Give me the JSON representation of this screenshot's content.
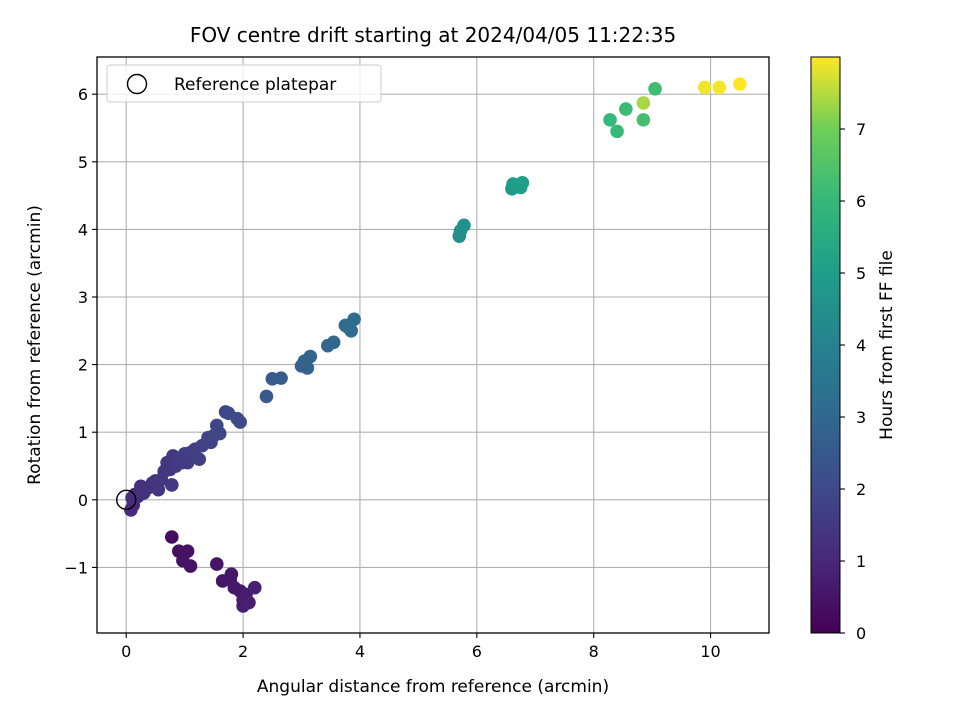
{
  "chart_data": {
    "type": "scatter",
    "title": "FOV centre drift starting at 2024/04/05 11:22:35",
    "xlabel": "Angular distance from reference (arcmin)",
    "ylabel": "Rotation from reference (arcmin)",
    "xlim": [
      -0.5,
      11.0
    ],
    "ylim": [
      -1.97,
      6.55
    ],
    "xticks": [
      0,
      2,
      4,
      6,
      8,
      10
    ],
    "yticks": [
      -1,
      0,
      1,
      2,
      3,
      4,
      5,
      6
    ],
    "ytick_labels": [
      "−1",
      "0",
      "1",
      "2",
      "3",
      "4",
      "5",
      "6"
    ],
    "grid": true,
    "colormap": "viridis",
    "colorbar": {
      "label": "Hours from first FF file",
      "range": [
        0,
        8.0
      ],
      "ticks": [
        0,
        1,
        2,
        3,
        4,
        5,
        6,
        7
      ]
    },
    "legend": {
      "placement": "top-left",
      "entries": [
        {
          "label": "Reference platepar",
          "marker": "open-circle"
        }
      ]
    },
    "reference_point": {
      "x": 0,
      "y": 0
    },
    "series": [
      {
        "color_by": "hours",
        "points": [
          [
            0.78,
            -0.55,
            0.3
          ],
          [
            0.9,
            -0.76,
            0.35
          ],
          [
            0.98,
            -0.8,
            0.4
          ],
          [
            1.05,
            -0.76,
            0.4
          ],
          [
            0.97,
            -0.9,
            0.45
          ],
          [
            1.1,
            -0.98,
            0.45
          ],
          [
            1.55,
            -0.95,
            0.5
          ],
          [
            1.65,
            -1.2,
            0.5
          ],
          [
            1.78,
            -1.18,
            0.55
          ],
          [
            1.8,
            -1.1,
            0.55
          ],
          [
            1.85,
            -1.3,
            0.6
          ],
          [
            1.95,
            -1.35,
            0.6
          ],
          [
            2.0,
            -1.48,
            0.65
          ],
          [
            2.05,
            -1.4,
            0.7
          ],
          [
            2.0,
            -1.57,
            0.75
          ],
          [
            2.1,
            -1.52,
            0.8
          ],
          [
            2.2,
            -1.3,
            0.85
          ],
          [
            0.08,
            -0.15,
            1.1
          ],
          [
            0.12,
            -0.08,
            1.1
          ],
          [
            0.1,
            0.03,
            1.15
          ],
          [
            0.15,
            0.08,
            1.15
          ],
          [
            0.2,
            0.05,
            1.2
          ],
          [
            0.25,
            0.2,
            1.2
          ],
          [
            0.3,
            0.1,
            1.25
          ],
          [
            0.38,
            0.18,
            1.3
          ],
          [
            0.45,
            0.25,
            1.3
          ],
          [
            0.5,
            0.28,
            1.35
          ],
          [
            0.55,
            0.15,
            1.35
          ],
          [
            0.6,
            0.3,
            1.4
          ],
          [
            0.65,
            0.42,
            1.4
          ],
          [
            0.7,
            0.55,
            1.45
          ],
          [
            0.75,
            0.45,
            1.45
          ],
          [
            0.78,
            0.22,
            1.5
          ],
          [
            0.8,
            0.65,
            1.5
          ],
          [
            0.85,
            0.5,
            1.5
          ],
          [
            0.9,
            0.6,
            1.55
          ],
          [
            0.95,
            0.55,
            1.55
          ],
          [
            1.0,
            0.68,
            1.6
          ],
          [
            1.05,
            0.55,
            1.6
          ],
          [
            1.1,
            0.7,
            1.65
          ],
          [
            1.18,
            0.75,
            1.65
          ],
          [
            1.25,
            0.6,
            1.7
          ],
          [
            1.3,
            0.8,
            1.75
          ],
          [
            1.4,
            0.92,
            1.8
          ],
          [
            1.45,
            0.85,
            1.8
          ],
          [
            1.5,
            0.95,
            1.85
          ],
          [
            1.55,
            1.1,
            1.9
          ],
          [
            1.6,
            0.98,
            1.9
          ],
          [
            1.7,
            1.3,
            1.95
          ],
          [
            1.75,
            1.28,
            2.0
          ],
          [
            1.9,
            1.2,
            2.0
          ],
          [
            1.95,
            1.15,
            2.05
          ],
          [
            2.4,
            1.53,
            2.5
          ],
          [
            2.5,
            1.79,
            2.55
          ],
          [
            2.65,
            1.8,
            2.6
          ],
          [
            3.0,
            1.98,
            2.75
          ],
          [
            3.05,
            2.05,
            2.8
          ],
          [
            3.1,
            1.95,
            2.8
          ],
          [
            3.15,
            2.12,
            2.85
          ],
          [
            3.45,
            2.28,
            2.95
          ],
          [
            3.55,
            2.33,
            3.0
          ],
          [
            3.75,
            2.58,
            3.1
          ],
          [
            3.8,
            2.55,
            3.15
          ],
          [
            3.85,
            2.5,
            3.15
          ],
          [
            3.9,
            2.67,
            3.2
          ],
          [
            5.7,
            3.9,
            4.45
          ],
          [
            5.72,
            3.98,
            4.5
          ],
          [
            5.78,
            4.06,
            4.55
          ],
          [
            6.6,
            4.6,
            4.9
          ],
          [
            6.62,
            4.67,
            4.9
          ],
          [
            6.7,
            4.65,
            4.95
          ],
          [
            6.75,
            4.62,
            4.95
          ],
          [
            6.78,
            4.69,
            5.0
          ],
          [
            8.28,
            5.62,
            6.0
          ],
          [
            8.4,
            5.45,
            6.05
          ],
          [
            8.55,
            5.78,
            6.1
          ],
          [
            8.85,
            5.62,
            6.3
          ],
          [
            8.85,
            5.87,
            7.4
          ],
          [
            9.05,
            6.08,
            6.2
          ],
          [
            9.9,
            6.1,
            7.9
          ],
          [
            10.15,
            6.1,
            7.95
          ],
          [
            10.5,
            6.15,
            8.0
          ]
        ]
      }
    ]
  }
}
